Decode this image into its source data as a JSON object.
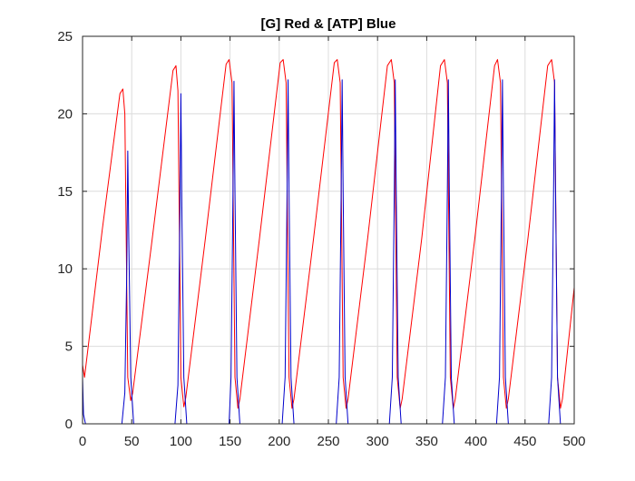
{
  "chart_data": {
    "type": "line",
    "title": "[G] Red & [ATP] Blue",
    "xlabel": "",
    "ylabel": "",
    "xlim": [
      0,
      500
    ],
    "ylim": [
      0,
      25
    ],
    "x_ticks": [
      0,
      50,
      100,
      150,
      200,
      250,
      300,
      350,
      400,
      450,
      500
    ],
    "y_ticks": [
      0,
      5,
      10,
      15,
      20,
      25
    ],
    "x_tick_labels": [
      "0",
      "50",
      "100",
      "150",
      "200",
      "250",
      "300",
      "350",
      "400",
      "450",
      "500"
    ],
    "y_tick_labels": [
      "0",
      "5",
      "10",
      "15",
      "20",
      "25"
    ],
    "grid": true,
    "legend": "none",
    "axes_color": "#262626",
    "grid_color": "#dcdcdc",
    "series": [
      {
        "color": "#ff0000",
        "x": [
          0,
          2,
          20,
          38,
          41,
          43,
          46,
          49,
          51,
          70,
          92,
          95,
          97,
          100,
          103,
          105,
          125,
          146,
          149,
          152,
          155,
          158,
          160,
          180,
          201,
          204,
          207,
          210,
          213,
          215,
          235,
          256,
          259,
          262,
          265,
          268,
          270,
          290,
          310,
          314,
          317,
          320,
          323,
          325,
          345,
          364,
          368,
          371,
          374,
          377,
          379,
          399,
          419,
          422,
          425,
          428,
          431,
          433,
          453,
          473,
          477,
          480,
          483,
          486,
          488,
          500
        ],
        "y": [
          3.8,
          3.0,
          12.5,
          21.3,
          21.6,
          20.0,
          3.0,
          1.5,
          2.0,
          11.5,
          22.8,
          23.1,
          21.5,
          3.0,
          1.1,
          1.7,
          12.0,
          23.2,
          23.5,
          22.0,
          3.0,
          1.0,
          1.6,
          12.0,
          23.3,
          23.5,
          22.0,
          3.0,
          1.0,
          1.6,
          12.0,
          23.3,
          23.5,
          22.0,
          3.0,
          1.0,
          1.6,
          12.0,
          23.1,
          23.5,
          22.0,
          3.0,
          1.0,
          1.6,
          12.0,
          23.1,
          23.5,
          22.0,
          3.0,
          1.0,
          1.6,
          12.0,
          23.1,
          23.5,
          22.0,
          3.0,
          1.0,
          1.6,
          12.0,
          23.1,
          23.5,
          22.0,
          3.0,
          1.0,
          1.6,
          8.8
        ]
      },
      {
        "color": "#0000cc",
        "x": [
          0,
          1,
          3,
          40,
          43,
          45,
          46,
          47,
          49,
          52,
          94,
          97,
          99,
          100,
          101,
          103,
          106,
          149,
          151,
          153,
          154,
          155,
          157,
          160,
          203,
          206,
          208,
          209,
          210,
          212,
          215,
          258,
          261,
          263,
          264,
          265,
          267,
          270,
          312,
          315,
          317,
          318,
          319,
          321,
          324,
          366,
          369,
          371,
          372,
          373,
          375,
          378,
          421,
          424,
          426,
          427,
          428,
          430,
          433,
          474,
          477,
          479,
          480,
          481,
          483,
          486,
          500
        ],
        "y": [
          3.0,
          0.6,
          0.0,
          0.0,
          2.0,
          10.0,
          17.6,
          12.0,
          3.0,
          0.0,
          0.0,
          2.5,
          14.0,
          21.3,
          14.0,
          3.0,
          0.0,
          0.0,
          3.0,
          15.0,
          22.1,
          15.0,
          3.0,
          0.0,
          0.0,
          3.0,
          15.0,
          22.2,
          15.0,
          3.0,
          0.0,
          0.0,
          3.0,
          15.0,
          22.2,
          15.0,
          3.0,
          0.0,
          0.0,
          3.0,
          15.0,
          22.2,
          15.0,
          3.0,
          0.0,
          0.0,
          3.0,
          15.0,
          22.2,
          15.0,
          3.0,
          0.0,
          0.0,
          3.0,
          15.0,
          22.2,
          15.0,
          3.0,
          0.0,
          0.0,
          3.0,
          15.0,
          22.2,
          15.0,
          3.0,
          0.0,
          0.0
        ]
      }
    ]
  }
}
